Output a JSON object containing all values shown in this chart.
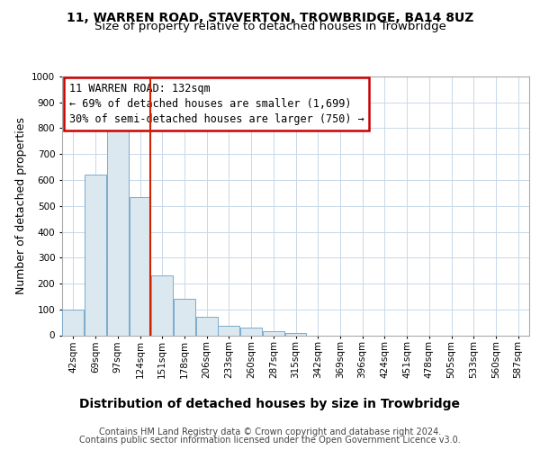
{
  "title": "11, WARREN ROAD, STAVERTON, TROWBRIDGE, BA14 8UZ",
  "subtitle": "Size of property relative to detached houses in Trowbridge",
  "xlabel": "Distribution of detached houses by size in Trowbridge",
  "ylabel": "Number of detached properties",
  "footer_line1": "Contains HM Land Registry data © Crown copyright and database right 2024.",
  "footer_line2": "Contains public sector information licensed under the Open Government Licence v3.0.",
  "annotation_line1": "11 WARREN ROAD: 132sqm",
  "annotation_line2": "← 69% of detached houses are smaller (1,699)",
  "annotation_line3": "30% of semi-detached houses are larger (750) →",
  "bar_labels": [
    "42sqm",
    "69sqm",
    "97sqm",
    "124sqm",
    "151sqm",
    "178sqm",
    "206sqm",
    "233sqm",
    "260sqm",
    "287sqm",
    "315sqm",
    "342sqm",
    "369sqm",
    "396sqm",
    "424sqm",
    "451sqm",
    "478sqm",
    "505sqm",
    "533sqm",
    "560sqm",
    "587sqm"
  ],
  "bar_values": [
    100,
    620,
    790,
    535,
    230,
    140,
    70,
    35,
    30,
    15,
    10,
    0,
    0,
    0,
    0,
    0,
    0,
    0,
    0,
    0,
    0
  ],
  "bar_color": "#dce8f0",
  "bar_edgecolor": "#7aaacc",
  "red_line_x": 3.45,
  "ylim": [
    0,
    1000
  ],
  "yticks": [
    0,
    100,
    200,
    300,
    400,
    500,
    600,
    700,
    800,
    900,
    1000
  ],
  "bg_color": "#ffffff",
  "grid_color": "#c8d8e8",
  "annotation_box_color": "#ffffff",
  "annotation_box_edgecolor": "#cc0000",
  "red_line_color": "#cc2200",
  "title_fontsize": 10,
  "subtitle_fontsize": 9.5,
  "xlabel_fontsize": 10,
  "ylabel_fontsize": 9,
  "tick_fontsize": 7.5,
  "annotation_fontsize": 8.5,
  "footer_fontsize": 7
}
